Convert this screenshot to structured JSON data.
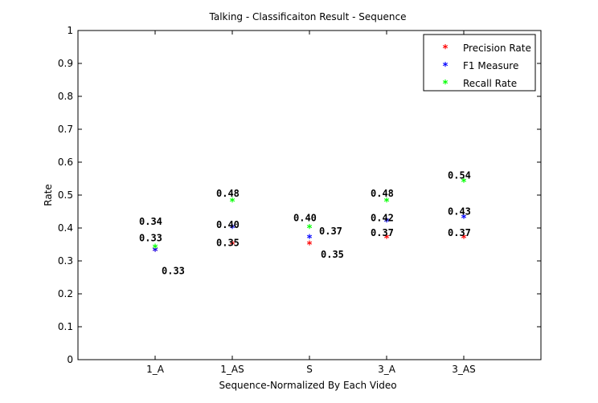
{
  "chart_data": {
    "type": "scatter",
    "title": "Talking - Classificaiton Result - Sequence",
    "xlabel": "Sequence-Normalized By Each Video",
    "ylabel": "Rate",
    "categories": [
      "1_A",
      "1_AS",
      "S",
      "3_A",
      "3_AS"
    ],
    "ylim": [
      0,
      1
    ],
    "yticks": [
      "0",
      "0.1",
      "0.2",
      "0.3",
      "0.4",
      "0.5",
      "0.6",
      "0.7",
      "0.8",
      "0.9",
      "1"
    ],
    "grid": false,
    "legend_position": "top-right",
    "marker_symbol": "*",
    "series": [
      {
        "name": "Precision Rate",
        "color": "#ff0000",
        "values": [
          0.33,
          0.35,
          0.35,
          0.37,
          0.37
        ]
      },
      {
        "name": "F1 Measure",
        "color": "#0000ff",
        "values": [
          0.33,
          0.4,
          0.37,
          0.42,
          0.43
        ]
      },
      {
        "name": "Recall Rate",
        "color": "#00ff00",
        "values": [
          0.34,
          0.48,
          0.4,
          0.48,
          0.54
        ]
      }
    ],
    "data_labels": [
      {
        "category": "1_A",
        "text": "0.34",
        "y": 0.42
      },
      {
        "category": "1_A",
        "text": "0.33",
        "y": 0.37
      },
      {
        "category": "1_A",
        "text": "0.33",
        "y": 0.27
      },
      {
        "category": "1_AS",
        "text": "0.48",
        "y": 0.505
      },
      {
        "category": "1_AS",
        "text": "0.40",
        "y": 0.41
      },
      {
        "category": "1_AS",
        "text": "0.35",
        "y": 0.355
      },
      {
        "category": "S",
        "text": "0.40",
        "y": 0.43
      },
      {
        "category": "S",
        "text": "0.37",
        "y": 0.39
      },
      {
        "category": "S",
        "text": "0.35",
        "y": 0.32
      },
      {
        "category": "3_A",
        "text": "0.48",
        "y": 0.505
      },
      {
        "category": "3_A",
        "text": "0.42",
        "y": 0.43
      },
      {
        "category": "3_A",
        "text": "0.37",
        "y": 0.385
      },
      {
        "category": "3_AS",
        "text": "0.54",
        "y": 0.56
      },
      {
        "category": "3_AS",
        "text": "0.43",
        "y": 0.45
      },
      {
        "category": "3_AS",
        "text": "0.37",
        "y": 0.385
      }
    ]
  }
}
